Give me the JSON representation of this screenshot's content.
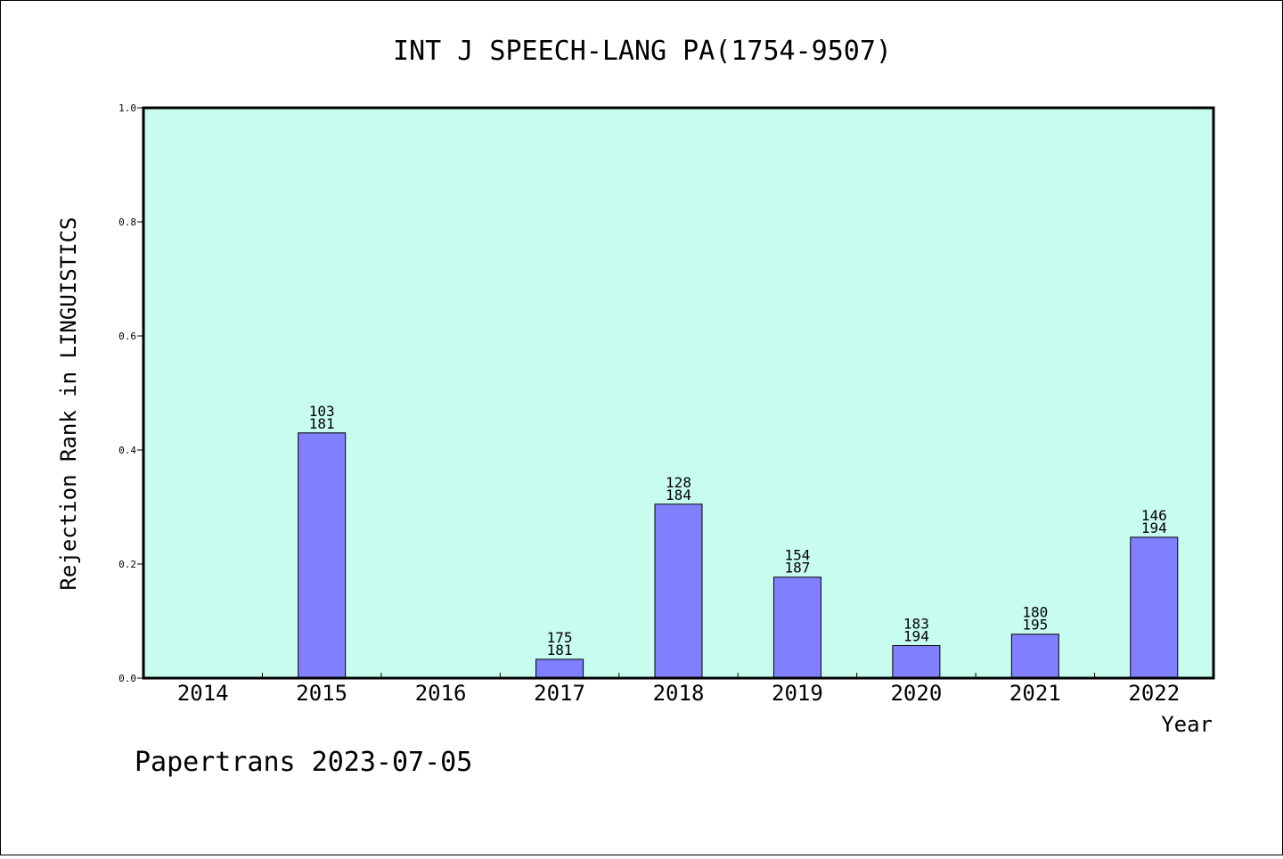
{
  "chart_data": {
    "type": "bar",
    "title": "INT J SPEECH-LANG PA(1754-9507)",
    "xlabel": "Year",
    "ylabel": "Rejection Rank in LINGUISTICS",
    "categories": [
      "2014",
      "2015",
      "2016",
      "2017",
      "2018",
      "2019",
      "2020",
      "2021",
      "2022"
    ],
    "values": [
      null,
      0.43,
      null,
      0.033,
      0.305,
      0.177,
      0.057,
      0.077,
      0.247
    ],
    "labels": [
      null,
      [
        "103",
        "181"
      ],
      null,
      [
        "175",
        "181"
      ],
      [
        "128",
        "184"
      ],
      [
        "154",
        "187"
      ],
      [
        "183",
        "194"
      ],
      [
        "180",
        "195"
      ],
      [
        "146",
        "194"
      ]
    ],
    "ylim": [
      0,
      1.0
    ],
    "yticks": [
      "0.0",
      "0.2",
      "0.4",
      "0.6",
      "0.8",
      "1.0"
    ],
    "grid": false,
    "colors": {
      "plot_bg": "#c8fcee",
      "bar": "#8080ff",
      "bar_edge": "#000000"
    }
  },
  "footer": "Papertrans 2023-07-05"
}
